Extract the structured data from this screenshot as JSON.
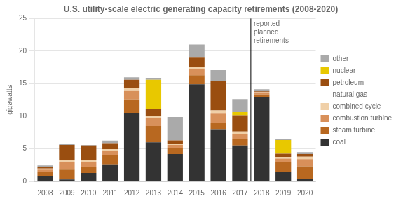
{
  "chart_data": {
    "type": "bar",
    "title": "U.S. utility-scale electric generating capacity retirements (2008-2020)",
    "ylabel": "gigawatts",
    "categories": [
      2008,
      2009,
      2010,
      2011,
      2012,
      2013,
      2014,
      2015,
      2016,
      2017,
      2018,
      2019,
      2020
    ],
    "series": [
      {
        "name": "coal",
        "color": "#333333",
        "values": [
          0.8,
          0.3,
          1.3,
          2.6,
          10.5,
          6.0,
          4.2,
          14.9,
          8.0,
          5.5,
          13.0,
          1.5,
          0.4
        ]
      },
      {
        "name": "steam turbine",
        "group": "natural gas",
        "color": "#b86820",
        "values": [
          0.7,
          1.5,
          0.9,
          1.4,
          2.0,
          2.5,
          0.9,
          1.4,
          1.0,
          1.0,
          0.35,
          1.4,
          1.9
        ]
      },
      {
        "name": "combustion turbine",
        "group": "natural gas",
        "color": "#d8905a",
        "values": [
          0.3,
          1.1,
          0.8,
          0.7,
          1.4,
          1.2,
          0.5,
          0.9,
          1.4,
          0.8,
          0.25,
          0.6,
          1.1
        ]
      },
      {
        "name": "combined cycle",
        "group": "natural gas",
        "color": "#f0d0a8",
        "values": [
          0.15,
          0.4,
          0.3,
          0.25,
          0.5,
          0.4,
          0.2,
          0.4,
          0.5,
          0.35,
          0.1,
          0.25,
          0.4
        ]
      },
      {
        "name": "petroleum",
        "color": "#9a4e10",
        "values": [
          0.2,
          2.3,
          2.2,
          0.9,
          1.2,
          1.0,
          0.5,
          1.4,
          4.5,
          2.5,
          0.15,
          0.5,
          0.4
        ]
      },
      {
        "name": "nuclear",
        "color": "#e8c800",
        "values": [
          0.0,
          0.0,
          0.0,
          0.0,
          0.0,
          4.5,
          0.0,
          0.0,
          0.0,
          0.5,
          0.0,
          2.1,
          0.0
        ]
      },
      {
        "name": "other",
        "color": "#aaaaaa",
        "values": [
          0.3,
          0.2,
          0.1,
          0.4,
          0.4,
          0.2,
          3.6,
          2.0,
          1.7,
          1.9,
          0.3,
          0.2,
          0.3
        ]
      }
    ],
    "stacked": true,
    "ylim": [
      0,
      25
    ],
    "yticks": [
      0,
      5,
      10,
      15,
      20,
      25
    ],
    "grid": "y",
    "legend": "right",
    "annotations": [
      {
        "type": "vline",
        "after": 2017,
        "text": "reported\nplanned\nretirements"
      }
    ]
  }
}
